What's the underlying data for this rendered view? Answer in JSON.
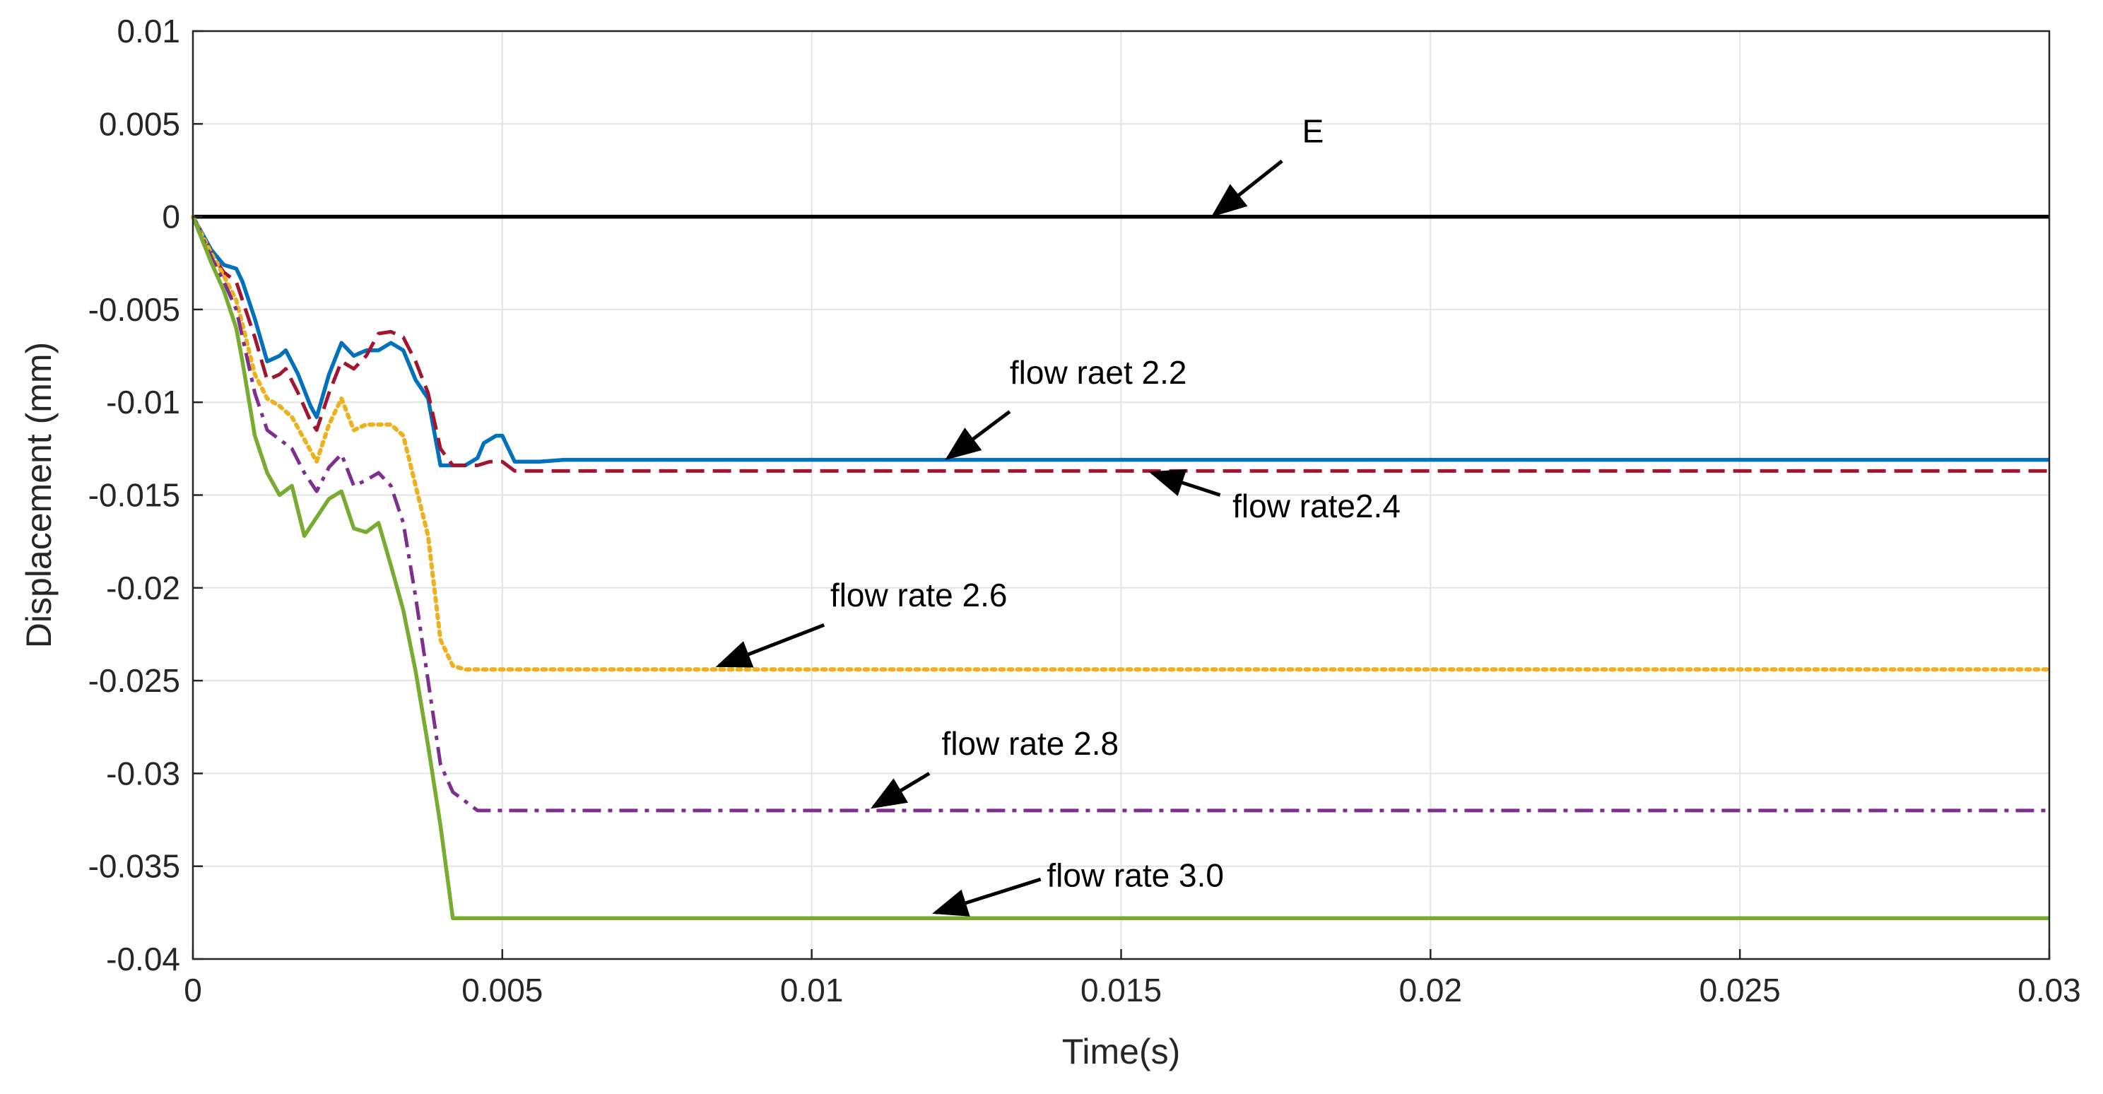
{
  "chart_data": {
    "type": "line",
    "title": "",
    "xlabel": "Time(s)",
    "ylabel": "Displacement (mm)",
    "xlim": [
      0,
      0.03
    ],
    "ylim": [
      -0.04,
      0.01
    ],
    "grid": true,
    "x_ticks": [
      0,
      0.005,
      0.01,
      0.015,
      0.02,
      0.025,
      0.03
    ],
    "x_tick_labels": [
      "0",
      "0.005",
      "0.01",
      "0.015",
      "0.02",
      "0.025",
      "0.03"
    ],
    "y_ticks": [
      0.01,
      0.005,
      0,
      -0.005,
      -0.01,
      -0.015,
      -0.02,
      -0.025,
      -0.03,
      -0.035,
      -0.04
    ],
    "y_tick_labels": [
      "0.01",
      "0.005",
      "0",
      "-0.005",
      "-0.01",
      "-0.015",
      "-0.02",
      "-0.025",
      "-0.03",
      "-0.035",
      "-0.04"
    ],
    "series": [
      {
        "name": "E",
        "color": "#000000",
        "dash": "solid",
        "x": [
          0,
          0.03
        ],
        "y": [
          0,
          0
        ]
      },
      {
        "name": "flow raet 2.2",
        "color": "#0072BD",
        "dash": "solid",
        "x": [
          0,
          0.0003,
          0.0005,
          0.0007,
          0.0008,
          0.001,
          0.0012,
          0.0014,
          0.0015,
          0.0017,
          0.0019,
          0.002,
          0.0022,
          0.0024,
          0.0026,
          0.0028,
          0.003,
          0.0032,
          0.0034,
          0.0036,
          0.0038,
          0.004,
          0.0042,
          0.0044,
          0.0046,
          0.0047,
          0.0049,
          0.005,
          0.0052,
          0.0056,
          0.006,
          0.008,
          0.01,
          0.015,
          0.02,
          0.025,
          0.03
        ],
        "y": [
          0,
          -0.0018,
          -0.0026,
          -0.0028,
          -0.0035,
          -0.0055,
          -0.0078,
          -0.0075,
          -0.0072,
          -0.0085,
          -0.0102,
          -0.0108,
          -0.0085,
          -0.0068,
          -0.0075,
          -0.0072,
          -0.0072,
          -0.0068,
          -0.0072,
          -0.0088,
          -0.0098,
          -0.0134,
          -0.0134,
          -0.0134,
          -0.013,
          -0.0122,
          -0.0118,
          -0.0118,
          -0.0132,
          -0.0132,
          -0.0131,
          -0.0131,
          -0.0131,
          -0.0131,
          -0.0131,
          -0.0131,
          -0.0131
        ]
      },
      {
        "name": "flow rate2.4",
        "color": "#A2142F",
        "dash": "dashed",
        "x": [
          0,
          0.0003,
          0.0005,
          0.0007,
          0.0008,
          0.001,
          0.0012,
          0.0014,
          0.0015,
          0.0017,
          0.0019,
          0.002,
          0.0022,
          0.0024,
          0.0026,
          0.0028,
          0.003,
          0.0032,
          0.0034,
          0.0036,
          0.0038,
          0.004,
          0.0042,
          0.0044,
          0.0046,
          0.0048,
          0.005,
          0.0052,
          0.006,
          0.01,
          0.015,
          0.02,
          0.025,
          0.03
        ],
        "y": [
          0,
          -0.002,
          -0.003,
          -0.0035,
          -0.0045,
          -0.0065,
          -0.0088,
          -0.0085,
          -0.0082,
          -0.0095,
          -0.011,
          -0.0115,
          -0.0095,
          -0.0078,
          -0.0082,
          -0.0075,
          -0.0063,
          -0.0062,
          -0.0065,
          -0.0078,
          -0.0095,
          -0.0125,
          -0.0134,
          -0.0134,
          -0.0134,
          -0.0132,
          -0.0132,
          -0.0137,
          -0.0137,
          -0.0137,
          -0.0137,
          -0.0137,
          -0.0137,
          -0.0137
        ]
      },
      {
        "name": "flow rate 2.6",
        "color": "#EDB120",
        "dash": "dotted",
        "x": [
          0,
          0.0003,
          0.0005,
          0.0007,
          0.0008,
          0.001,
          0.0012,
          0.0014,
          0.0016,
          0.0018,
          0.002,
          0.0022,
          0.0024,
          0.0026,
          0.0028,
          0.003,
          0.0032,
          0.0034,
          0.0036,
          0.0038,
          0.004,
          0.0042,
          0.0044,
          0.005,
          0.006,
          0.01,
          0.015,
          0.02,
          0.025,
          0.03
        ],
        "y": [
          0,
          -0.002,
          -0.0032,
          -0.0045,
          -0.0058,
          -0.0085,
          -0.0098,
          -0.0102,
          -0.0108,
          -0.012,
          -0.0132,
          -0.0112,
          -0.0098,
          -0.0115,
          -0.0112,
          -0.0112,
          -0.0112,
          -0.0118,
          -0.0145,
          -0.0172,
          -0.0228,
          -0.0242,
          -0.0244,
          -0.0244,
          -0.0244,
          -0.0244,
          -0.0244,
          -0.0244,
          -0.0244,
          -0.0244
        ]
      },
      {
        "name": "flow rate 2.8",
        "color": "#7E2F8E",
        "dash": "dashdot",
        "x": [
          0,
          0.0003,
          0.0005,
          0.0007,
          0.0008,
          0.001,
          0.0012,
          0.0014,
          0.0016,
          0.0018,
          0.002,
          0.0022,
          0.0024,
          0.0026,
          0.0028,
          0.003,
          0.0032,
          0.0034,
          0.0036,
          0.0038,
          0.004,
          0.0042,
          0.0044,
          0.0046,
          0.005,
          0.006,
          0.01,
          0.015,
          0.02,
          0.025,
          0.03
        ],
        "y": [
          0,
          -0.0022,
          -0.0035,
          -0.005,
          -0.0065,
          -0.0095,
          -0.0115,
          -0.012,
          -0.0125,
          -0.0138,
          -0.0148,
          -0.0135,
          -0.0128,
          -0.0145,
          -0.0142,
          -0.0138,
          -0.0145,
          -0.0165,
          -0.0205,
          -0.025,
          -0.0295,
          -0.031,
          -0.0315,
          -0.032,
          -0.032,
          -0.032,
          -0.032,
          -0.032,
          -0.032,
          -0.032,
          -0.032
        ]
      },
      {
        "name": "flow rate 3.0",
        "color": "#77AC30",
        "dash": "solid",
        "x": [
          0,
          0.0003,
          0.0005,
          0.0007,
          0.0008,
          0.001,
          0.0012,
          0.0014,
          0.0016,
          0.0018,
          0.002,
          0.0022,
          0.0024,
          0.0026,
          0.0028,
          0.003,
          0.0032,
          0.0034,
          0.0036,
          0.0038,
          0.004,
          0.0042,
          0.0044,
          0.005,
          0.006,
          0.01,
          0.015,
          0.02,
          0.025,
          0.03
        ],
        "y": [
          0,
          -0.0025,
          -0.004,
          -0.006,
          -0.0078,
          -0.0118,
          -0.0138,
          -0.015,
          -0.0145,
          -0.0172,
          -0.0162,
          -0.0152,
          -0.0148,
          -0.0168,
          -0.017,
          -0.0165,
          -0.0188,
          -0.0212,
          -0.0245,
          -0.0285,
          -0.0328,
          -0.0378,
          -0.0378,
          -0.0378,
          -0.0378,
          -0.0378,
          -0.0378,
          -0.0378,
          -0.0378,
          -0.0378
        ]
      }
    ],
    "annotations": [
      {
        "text": "E",
        "text_x": 0.0181,
        "text_y": 0.004,
        "arrow_from": [
          0.0176,
          0.003
        ],
        "arrow_to": [
          0.0165,
          0.0001
        ],
        "anchor": "middle"
      },
      {
        "text": "flow raet 2.2",
        "text_x": 0.0132,
        "text_y": -0.009,
        "arrow_from": [
          0.0132,
          -0.0105
        ],
        "arrow_to": [
          0.0122,
          -0.013
        ],
        "anchor": "start"
      },
      {
        "text": "flow rate2.4",
        "text_x": 0.0168,
        "text_y": -0.0162,
        "arrow_from": [
          0.0166,
          -0.015
        ],
        "arrow_to": [
          0.0155,
          -0.0138
        ],
        "anchor": "start"
      },
      {
        "text": "flow rate 2.6",
        "text_x": 0.0103,
        "text_y": -0.021,
        "arrow_from": [
          0.0102,
          -0.022
        ],
        "arrow_to": [
          0.0085,
          -0.0242
        ],
        "anchor": "start"
      },
      {
        "text": "flow rate 2.8",
        "text_x": 0.0121,
        "text_y": -0.029,
        "arrow_from": [
          0.0119,
          -0.03
        ],
        "arrow_to": [
          0.011,
          -0.0318
        ],
        "anchor": "start"
      },
      {
        "text": "flow rate 3.0",
        "text_x": 0.0138,
        "text_y": -0.0361,
        "arrow_from": [
          0.0137,
          -0.0357
        ],
        "arrow_to": [
          0.012,
          -0.0375
        ],
        "anchor": "start"
      }
    ]
  }
}
